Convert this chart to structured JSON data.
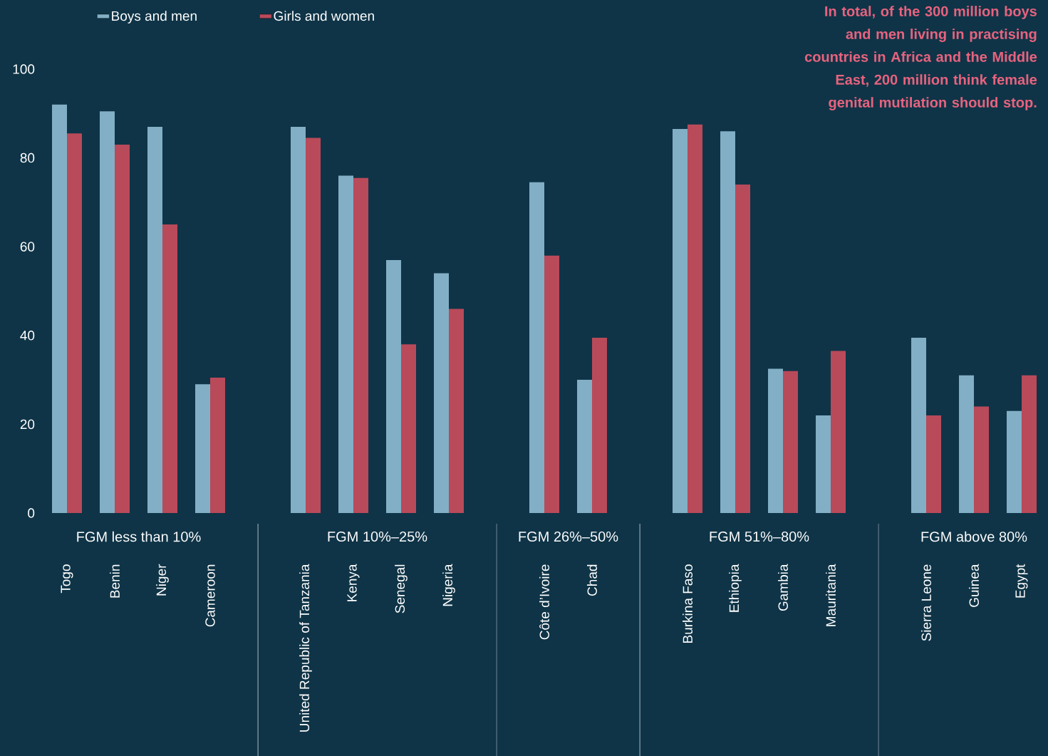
{
  "chart_data": {
    "type": "bar",
    "title": "In total, of the 300 million boys and men living in practising countries in Africa and the Middle East, 200 million think female genital mutilation should stop.",
    "categories": [
      "Togo",
      "Benin",
      "Niger",
      "Cameroon",
      null,
      "United Republic of Tanzania",
      "Kenya",
      "Senegal",
      "Nigeria",
      null,
      "Côte d’Ivoire",
      "Chad",
      null,
      "Burkina Faso",
      "Ethiopia",
      "Gambia",
      "Mauritania",
      null,
      "Sierra Leone",
      "Guinea",
      "Egypt"
    ],
    "series": [
      {
        "name": "Boys and men",
        "color": "#82afc5",
        "values": [
          92,
          90.5,
          87,
          29,
          null,
          87,
          76,
          57,
          54,
          null,
          74.5,
          30,
          null,
          86.5,
          86,
          32.5,
          22,
          null,
          39.5,
          31,
          23
        ]
      },
      {
        "name": "Girls and women",
        "color": "#b94a5a",
        "values": [
          85.5,
          83,
          65,
          30.5,
          null,
          84.5,
          75.5,
          38,
          46,
          null,
          58,
          39.5,
          null,
          87.5,
          74,
          32,
          36.5,
          null,
          22,
          24,
          31
        ]
      }
    ],
    "annotations": [
      "FGM less than 10%",
      "FGM 10%–25%",
      "FGM 26%–50%",
      "FGM 51%–80%",
      "FGM above 80%"
    ],
    "ylim": [
      0,
      100
    ],
    "yticks": [
      0,
      20,
      40,
      60,
      80,
      100
    ],
    "legend": "top left"
  }
}
